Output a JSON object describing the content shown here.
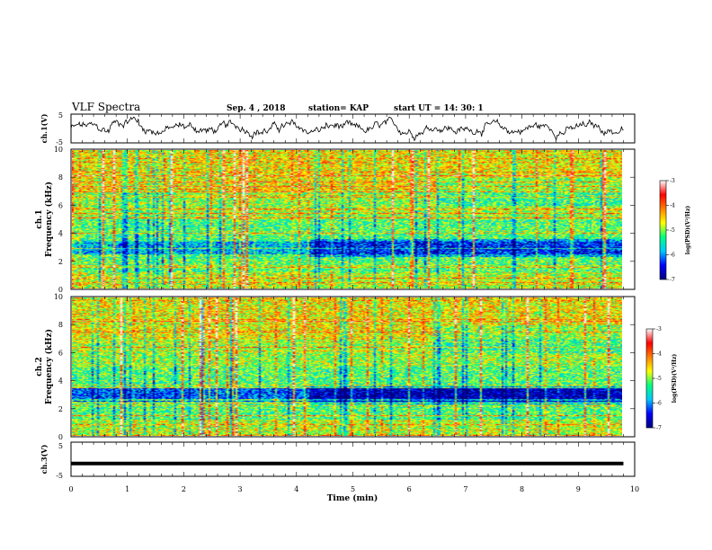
{
  "header": {
    "title": "VLF Spectra",
    "date": "Sep. 4 , 2018",
    "station": "station= KAP",
    "start": "start  UT =   14: 30: 1"
  },
  "chart_data": [
    {
      "id": "ch1-waveform",
      "type": "line",
      "ylabel": "ch.1(V)",
      "xlim": [
        0,
        10
      ],
      "ylim": [
        -5,
        5
      ],
      "yticks": [
        "5",
        "-5"
      ],
      "series": [
        {
          "values": "noisy signal between about -3 and +4 V from 0 to 9.8 min"
        }
      ]
    },
    {
      "id": "ch1-spectrogram",
      "type": "heatmap",
      "ylabel": "ch.1\nFrequency (kHz)",
      "ylabel_line1": "ch.1",
      "ylabel_line2": "Frequency (kHz)",
      "xlim": [
        0,
        9.8
      ],
      "ylim": [
        0,
        10
      ],
      "yticks": [
        "0",
        "2",
        "4",
        "6",
        "8",
        "10"
      ],
      "colorbar": {
        "label": "log(PSD)(V²/Hz)",
        "ticks": [
          "-3",
          "-4",
          "-5",
          "-6",
          "-7"
        ]
      }
    },
    {
      "id": "ch2-spectrogram",
      "type": "heatmap",
      "ylabel_line1": "ch.2",
      "ylabel_line2": "Frequency (kHz)",
      "xlim": [
        0,
        9.8
      ],
      "ylim": [
        0,
        10
      ],
      "yticks": [
        "0",
        "2",
        "4",
        "6",
        "8",
        "10"
      ],
      "colorbar": {
        "label": "log(PSD)(V²/Hz)",
        "ticks": [
          "-3",
          "-4",
          "-5",
          "-6",
          "-7"
        ]
      }
    },
    {
      "id": "ch3-waveform",
      "type": "line",
      "ylabel": "ch.3(V)",
      "xlim": [
        0,
        10
      ],
      "ylim": [
        -5,
        5
      ],
      "yticks": [
        "5",
        "-5"
      ],
      "series": [
        {
          "values": "flat line at about -1.5 V from 0 to 9.8 min"
        }
      ]
    }
  ],
  "xaxis": {
    "label": "Time  (min)",
    "ticks": [
      "0",
      "1",
      "2",
      "3",
      "4",
      "5",
      "6",
      "7",
      "8",
      "9",
      "10"
    ]
  },
  "colors": {
    "colormap": [
      "#000080",
      "#0000ff",
      "#00c8ff",
      "#00ff80",
      "#ffff00",
      "#ff8000",
      "#ff0000",
      "#ffffff"
    ]
  }
}
